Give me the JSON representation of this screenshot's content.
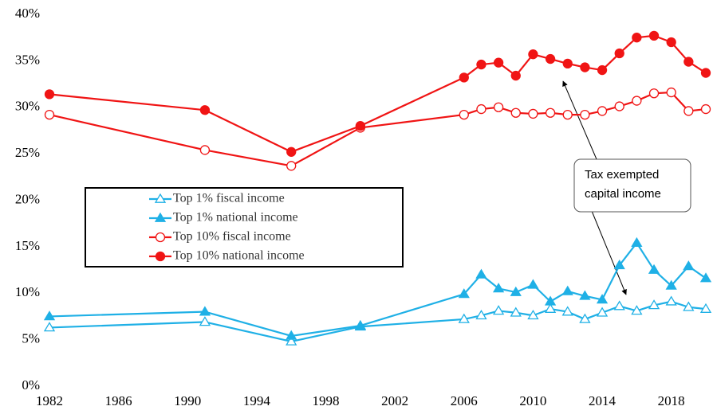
{
  "chart_data": {
    "type": "line",
    "x": [
      1982,
      1991,
      1996,
      2000,
      2006,
      2007,
      2008,
      2009,
      2010,
      2011,
      2012,
      2013,
      2014,
      2015,
      2016,
      2017,
      2018,
      2019,
      2020
    ],
    "series": [
      {
        "name": "Top 1% fiscal income",
        "color": "#1fb0e6",
        "marker": "triangle",
        "filled": false,
        "values": [
          6.3,
          6.9,
          4.8,
          6.4,
          7.2,
          7.6,
          8.1,
          7.9,
          7.6,
          8.3,
          8.0,
          7.2,
          7.9,
          8.6,
          8.1,
          8.7,
          9.1,
          8.5,
          8.3
        ]
      },
      {
        "name": "Top 1% national income",
        "color": "#1fb0e6",
        "marker": "triangle",
        "filled": true,
        "values": [
          7.5,
          8.0,
          5.4,
          6.5,
          9.9,
          12.0,
          10.5,
          10.1,
          10.9,
          9.1,
          10.2,
          9.7,
          9.3,
          13.0,
          15.4,
          12.5,
          10.8,
          12.9,
          11.6
        ]
      },
      {
        "name": "Top 10% fiscal income",
        "color": "#f01414",
        "marker": "circle",
        "filled": false,
        "values": [
          29.2,
          25.4,
          23.7,
          27.8,
          29.2,
          29.8,
          30.0,
          29.4,
          29.3,
          29.4,
          29.2,
          29.2,
          29.6,
          30.1,
          30.7,
          31.5,
          31.6,
          29.6,
          29.8
        ]
      },
      {
        "name": "Top 10% national income",
        "color": "#f01414",
        "marker": "circle",
        "filled": true,
        "values": [
          31.4,
          29.7,
          25.2,
          28.0,
          33.2,
          34.6,
          34.8,
          33.4,
          35.7,
          35.2,
          34.7,
          34.3,
          34.0,
          35.8,
          37.5,
          37.7,
          37.0,
          34.9,
          33.7
        ]
      }
    ],
    "xlim": [
      1982,
      2020
    ],
    "xticks": [
      1982,
      1986,
      1990,
      1994,
      1998,
      2002,
      2006,
      2010,
      2014,
      2018
    ],
    "ylim": [
      0,
      40
    ],
    "yticks": [
      {
        "value": 0,
        "label": "0%"
      },
      {
        "value": 5,
        "label": "5%"
      },
      {
        "value": 10,
        "label": "10%"
      },
      {
        "value": 15,
        "label": "15%"
      },
      {
        "value": 20,
        "label": "20%"
      },
      {
        "value": 25,
        "label": "25%"
      },
      {
        "value": 30,
        "label": "30%"
      },
      {
        "value": 35,
        "label": "35%"
      },
      {
        "value": 40,
        "label": "40%"
      }
    ],
    "grid": false,
    "legend": "center-left",
    "annotation": [
      "Tax exempted",
      "capital income"
    ]
  }
}
